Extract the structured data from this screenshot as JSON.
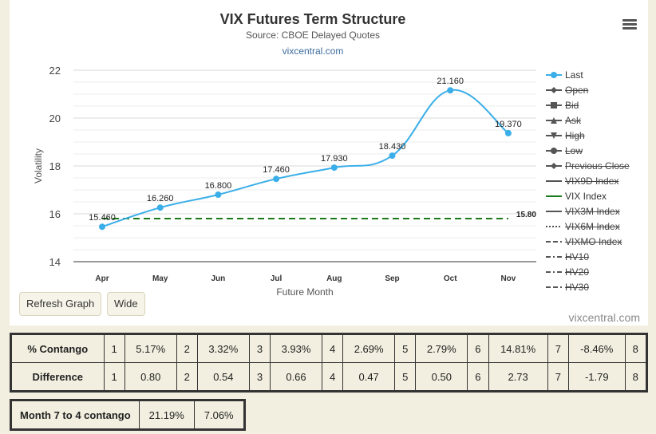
{
  "chart_data": {
    "type": "line",
    "title": "VIX Futures Term Structure",
    "subtitle": "Source: CBOE Delayed Quotes",
    "link": "vixcentral.com",
    "xlabel": "Future Month",
    "ylabel": "Volatility",
    "categories": [
      "Apr",
      "May",
      "Jun",
      "Jul",
      "Aug",
      "Sep",
      "Oct",
      "Nov"
    ],
    "ylim": [
      14,
      22
    ],
    "yticks": [
      14,
      16,
      18,
      20,
      22
    ],
    "grid": true,
    "legend_position": "right",
    "series": [
      {
        "name": "Last",
        "values": [
          15.46,
          16.26,
          16.8,
          17.46,
          17.93,
          18.43,
          21.16,
          19.37
        ],
        "labels": [
          "15.460",
          "16.260",
          "16.800",
          "17.460",
          "17.930",
          "18.430",
          "21.160",
          "19.370"
        ],
        "color": "#3aaee8"
      },
      {
        "name": "VIX Index",
        "value": 15.8,
        "label": "15.80",
        "color": "#1a7a1a",
        "dash": true
      }
    ],
    "credit": "vixcentral.com"
  },
  "legend": [
    {
      "name": "Last",
      "symbol": "circle",
      "color": "#3aaee8",
      "active": true
    },
    {
      "name": "Open",
      "symbol": "diamond",
      "color": "#555555",
      "active": false
    },
    {
      "name": "Bid",
      "symbol": "square",
      "color": "#555555",
      "active": false
    },
    {
      "name": "Ask",
      "symbol": "triangle",
      "color": "#555555",
      "active": false
    },
    {
      "name": "High",
      "symbol": "triangle-down",
      "color": "#555555",
      "active": false
    },
    {
      "name": "Low",
      "symbol": "circle",
      "color": "#555555",
      "active": false
    },
    {
      "name": "Previous Close",
      "symbol": "diamond",
      "color": "#555555",
      "active": false
    },
    {
      "name": "VIX9D Index",
      "symbol": "solid",
      "color": "#555555",
      "active": false
    },
    {
      "name": "VIX Index",
      "symbol": "solid",
      "color": "#1a7a1a",
      "active": true
    },
    {
      "name": "VIX3M Index",
      "symbol": "solid",
      "color": "#555555",
      "active": false
    },
    {
      "name": "VIX6M Index",
      "symbol": "dotted",
      "color": "#555555",
      "active": false
    },
    {
      "name": "VIXMO Index",
      "symbol": "dashed",
      "color": "#555555",
      "active": false
    },
    {
      "name": "HV10",
      "symbol": "dashdot",
      "color": "#555555",
      "active": false
    },
    {
      "name": "HV20",
      "symbol": "dashdot",
      "color": "#555555",
      "active": false
    },
    {
      "name": "HV30",
      "symbol": "dashed",
      "color": "#555555",
      "active": false
    }
  ],
  "buttons": {
    "refresh": "Refresh Graph",
    "wide": "Wide"
  },
  "contango_table": {
    "rows": [
      {
        "label": "% Contango",
        "cells": [
          "1",
          "5.17%",
          "2",
          "3.32%",
          "3",
          "3.93%",
          "4",
          "2.69%",
          "5",
          "2.79%",
          "6",
          "14.81%",
          "7",
          "-8.46%",
          "8"
        ]
      },
      {
        "label": "Difference",
        "cells": [
          "1",
          "0.80",
          "2",
          "0.54",
          "3",
          "0.66",
          "4",
          "0.47",
          "5",
          "0.50",
          "6",
          "2.73",
          "7",
          "-1.79",
          "8"
        ]
      }
    ]
  },
  "month_contango": {
    "label": "Month 7 to 4 contango",
    "values": [
      "21.19%",
      "7.06%"
    ]
  },
  "icons": {
    "menu": "hamburger-menu-icon"
  }
}
